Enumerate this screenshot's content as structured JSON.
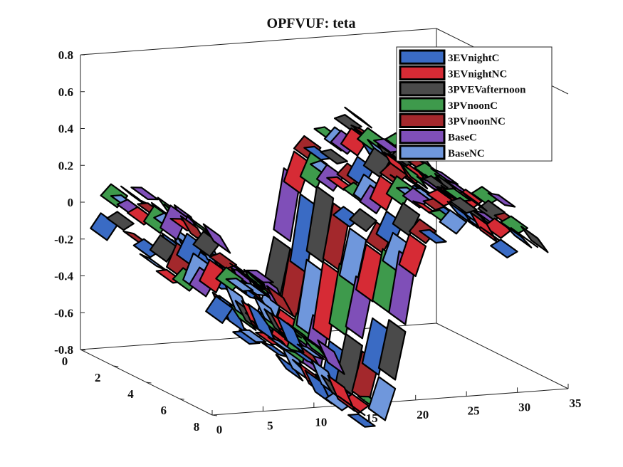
{
  "chart_data": {
    "type": "surface3d",
    "title": "OPFVUF: teta",
    "xlabel": "",
    "ylabel": "",
    "zlabel": "",
    "x_ticks": [
      "0",
      "5",
      "10",
      "15",
      "20",
      "25",
      "30",
      "35"
    ],
    "y_ticks": [
      "0",
      "2",
      "4",
      "6",
      "8"
    ],
    "z_ticks": [
      "0.8",
      "0.6",
      "0.4",
      "0.2",
      "0",
      "-0.2",
      "-0.4",
      "-0.6",
      "-0.8"
    ],
    "xlim": [
      0,
      35
    ],
    "ylim": [
      0,
      8
    ],
    "zlim": [
      -0.8,
      0.8
    ],
    "legend_position": "top-right",
    "series": [
      {
        "name": "3EVnightC",
        "color": "#3a6bc4",
        "offset": -0.24
      },
      {
        "name": "3EVnightNC",
        "color": "#d62b35",
        "offset": -0.12
      },
      {
        "name": "3PVEVafternoon",
        "color": "#4a4a4a",
        "offset": -0.04
      },
      {
        "name": "3PVnoonC",
        "color": "#3e9a4c",
        "offset": 0.0
      },
      {
        "name": "3PVnoonNC",
        "color": "#a3282c",
        "offset": -0.08
      },
      {
        "name": "BaseC",
        "color": "#7f4fb8",
        "offset": 0.06
      },
      {
        "name": "BaseNC",
        "color": "#6f97dc",
        "offset": -0.16
      }
    ],
    "z_profile": [
      -0.05,
      -0.02,
      0.06,
      0.12,
      0.08,
      0.02,
      -0.05,
      -0.12,
      -0.2,
      -0.26,
      -0.34,
      -0.42,
      -0.5,
      -0.58,
      -0.64,
      -0.7,
      -0.72,
      -0.5,
      -0.2,
      0.1,
      0.2,
      0.26,
      0.32,
      0.36,
      0.38,
      0.34,
      0.3,
      0.26,
      0.24,
      0.22,
      0.2,
      0.18,
      0.16
    ]
  }
}
